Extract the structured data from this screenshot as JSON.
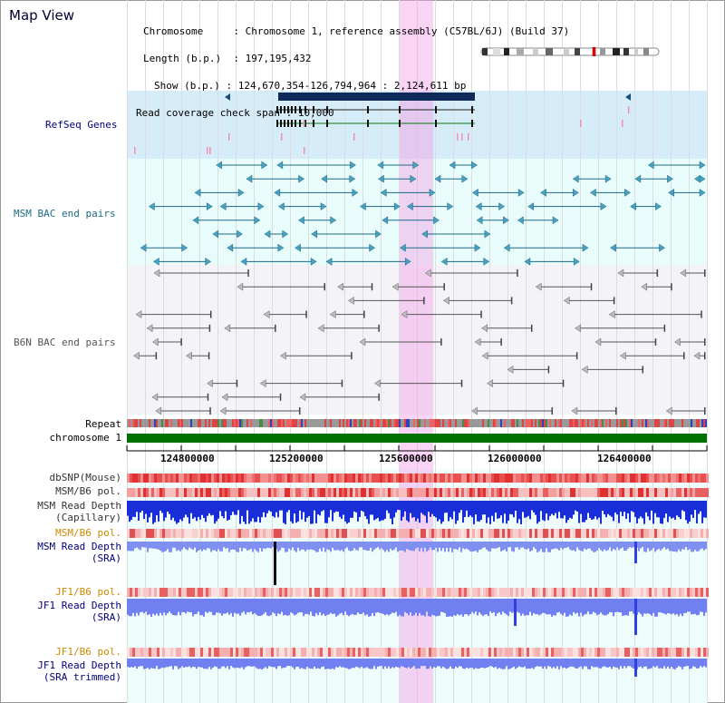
{
  "app": {
    "title": "Map View"
  },
  "info": {
    "chromosome_label": "Chromosome",
    "chromosome_value": "Chromosome 1, reference assembly (C57BL/6J) (Build 37)",
    "length_label": "Length (b.p.)",
    "length_value": "197,195,432",
    "show_label": "Show (b.p.)",
    "show_value": "124,670,354-126,794,964 : 2,124,611 bp",
    "coverage_label": "Read coverage check span",
    "coverage_value": "10,000"
  },
  "tracks": {
    "refseq": "RefSeq Genes",
    "msm_bac": "MSM BAC end pairs",
    "b6n_bac": "B6N BAC end pairs",
    "repeat": "Repeat",
    "chromosome": "chromosome 1",
    "dbsnp": "dbSNP(Mouse)",
    "msm_b6_pol_1": "MSM/B6 pol.",
    "msm_read_depth_cap_1": "MSM Read Depth",
    "msm_read_depth_cap_2": "(Capillary)",
    "msm_b6_pol_2": "MSM/B6 pol.",
    "msm_read_depth_sra_1": "MSM Read Depth",
    "msm_read_depth_sra_2": "(SRA)",
    "jf1_b6_pol_1": "JF1/B6 pol.",
    "jf1_read_depth_sra_1": "JF1 Read Depth",
    "jf1_read_depth_sra_2": "(SRA)",
    "jf1_b6_pol_2": "JF1/B6 pol.",
    "jf1_read_depth_trim_1": "JF1 Read Depth",
    "jf1_read_depth_trim_2": "(SRA trimmed)"
  },
  "axis": {
    "ticks": [
      "124800000",
      "125200000",
      "125600000",
      "126000000",
      "126400000"
    ]
  },
  "colors": {
    "refseq_bg": "#d6ecf8",
    "msm_bg": "#e8fcfc",
    "b6n_bg": "#f4f4f8",
    "highlight": "#f5a0e6",
    "msm_feature": "#1c6a85",
    "b6n_feature": "#666666",
    "label_blue": "#000080",
    "label_orange": "#cc8800",
    "chrom_green": "#007000"
  }
}
